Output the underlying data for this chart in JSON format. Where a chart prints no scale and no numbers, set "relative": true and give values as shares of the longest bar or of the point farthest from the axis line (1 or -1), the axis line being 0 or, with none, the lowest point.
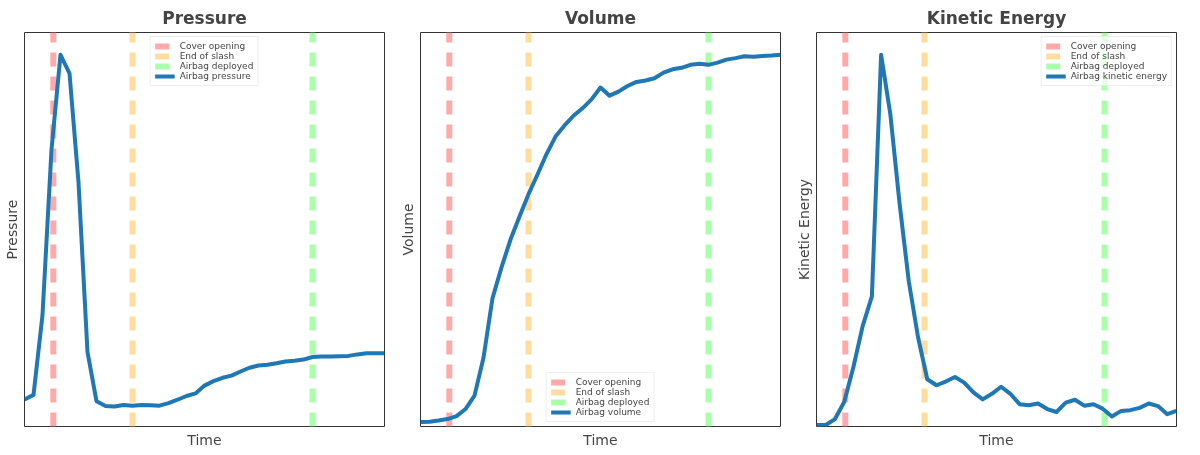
{
  "chart_data": [
    {
      "type": "line",
      "title": "Pressure",
      "xlabel": "Time",
      "ylabel": "Pressure",
      "relative": true,
      "tick_labels": false,
      "legend": "top",
      "line_style": "solid",
      "marker": "none",
      "categories": [
        null,
        null,
        null,
        null,
        null,
        null,
        null,
        null,
        null,
        null,
        null,
        null,
        null,
        null,
        null,
        null,
        null,
        null,
        null,
        null,
        null,
        null,
        null,
        null,
        null,
        null,
        null,
        null,
        null,
        null,
        null,
        null,
        null,
        null,
        null,
        null,
        null,
        null,
        null,
        null,
        null
      ],
      "ref_lines": [
        {
          "axis": "x",
          "label": "Cover opening",
          "color": "#ffaaaa",
          "line_style": "dashed"
        },
        {
          "axis": "x",
          "label": "End of slash",
          "color": "#ffdda0",
          "line_style": "dashed"
        },
        {
          "axis": "x",
          "label": "Airbag deployed",
          "color": "#aaffaa",
          "line_style": "dashed"
        }
      ],
      "series": [
        {
          "name": "Airbag pressure",
          "color": "#1f77b4",
          "values": [
            0.073,
            0.085,
            0.3,
            0.745,
            1,
            0.95,
            0.657,
            0.2,
            0.068,
            0.055,
            0.054,
            0.058,
            0.056,
            0.058,
            0.057,
            0.056,
            0.063,
            0.072,
            0.082,
            0.089,
            0.11,
            0.122,
            0.131,
            0.137,
            0.148,
            0.158,
            0.164,
            0.166,
            0.17,
            0.175,
            0.177,
            0.18,
            0.187,
            0.188,
            0.188,
            0.189,
            0.19,
            0.194,
            0.197,
            0.197,
            0.197
          ]
        }
      ]
    },
    {
      "type": "line",
      "title": "Volume",
      "xlabel": "Time",
      "ylabel": "Volume",
      "relative": true,
      "tick_labels": false,
      "legend": "bottom",
      "line_style": "solid",
      "marker": "none",
      "categories": [
        null,
        null,
        null,
        null,
        null,
        null,
        null,
        null,
        null,
        null,
        null,
        null,
        null,
        null,
        null,
        null,
        null,
        null,
        null,
        null,
        null,
        null,
        null,
        null,
        null,
        null,
        null,
        null,
        null,
        null,
        null,
        null,
        null,
        null,
        null,
        null,
        null,
        null,
        null,
        null,
        null
      ],
      "ref_lines": [
        {
          "axis": "x",
          "label": "Cover opening",
          "color": "#ffaaaa",
          "line_style": "dashed"
        },
        {
          "axis": "x",
          "label": "End of slash",
          "color": "#ffdda0",
          "line_style": "dashed"
        },
        {
          "axis": "x",
          "label": "Airbag deployed",
          "color": "#aaffaa",
          "line_style": "dashed"
        }
      ],
      "series": [
        {
          "name": "Airbag volume",
          "color": "#1f77b4",
          "values": [
            0.012,
            0.013,
            0.016,
            0.02,
            0.028,
            0.047,
            0.083,
            0.185,
            0.345,
            0.428,
            0.503,
            0.565,
            0.625,
            0.678,
            0.733,
            0.78,
            0.81,
            0.836,
            0.856,
            0.88,
            0.912,
            0.89,
            0.901,
            0.916,
            0.927,
            0.931,
            0.937,
            0.952,
            0.961,
            0.965,
            0.973,
            0.976,
            0.973,
            0.979,
            0.987,
            0.991,
            0.996,
            0.995,
            0.997,
            0.998,
            1
          ]
        }
      ]
    },
    {
      "type": "line",
      "title": "Kinetic Energy",
      "xlabel": "Time",
      "ylabel": "Kinetic Energy",
      "relative": true,
      "tick_labels": false,
      "legend": "top right",
      "line_style": "solid",
      "marker": "none",
      "categories": [
        null,
        null,
        null,
        null,
        null,
        null,
        null,
        null,
        null,
        null,
        null,
        null,
        null,
        null,
        null,
        null,
        null,
        null,
        null,
        null,
        null,
        null,
        null,
        null,
        null,
        null,
        null,
        null,
        null,
        null,
        null,
        null,
        null,
        null,
        null,
        null,
        null,
        null,
        null,
        null
      ],
      "ref_lines": [
        {
          "axis": "x",
          "label": "Cover opening",
          "color": "#ffaaaa",
          "line_style": "dashed"
        },
        {
          "axis": "x",
          "label": "End of slash",
          "color": "#ffdda0",
          "line_style": "dashed"
        },
        {
          "axis": "x",
          "label": "Airbag deployed",
          "color": "#aaffaa",
          "line_style": "dashed"
        }
      ],
      "series": [
        {
          "name": "Airbag kinetic energy",
          "color": "#1f77b4",
          "values": [
            0.004,
            0.004,
            0.02,
            0.066,
            0.16,
            0.27,
            0.35,
            1,
            0.84,
            0.6,
            0.39,
            0.24,
            0.127,
            0.111,
            0.121,
            0.133,
            0.118,
            0.092,
            0.073,
            0.088,
            0.107,
            0.088,
            0.06,
            0.057,
            0.062,
            0.047,
            0.039,
            0.064,
            0.072,
            0.056,
            0.06,
            0.048,
            0.027,
            0.042,
            0.044,
            0.05,
            0.062,
            0.055,
            0.033,
            0.042
          ]
        }
      ]
    }
  ]
}
